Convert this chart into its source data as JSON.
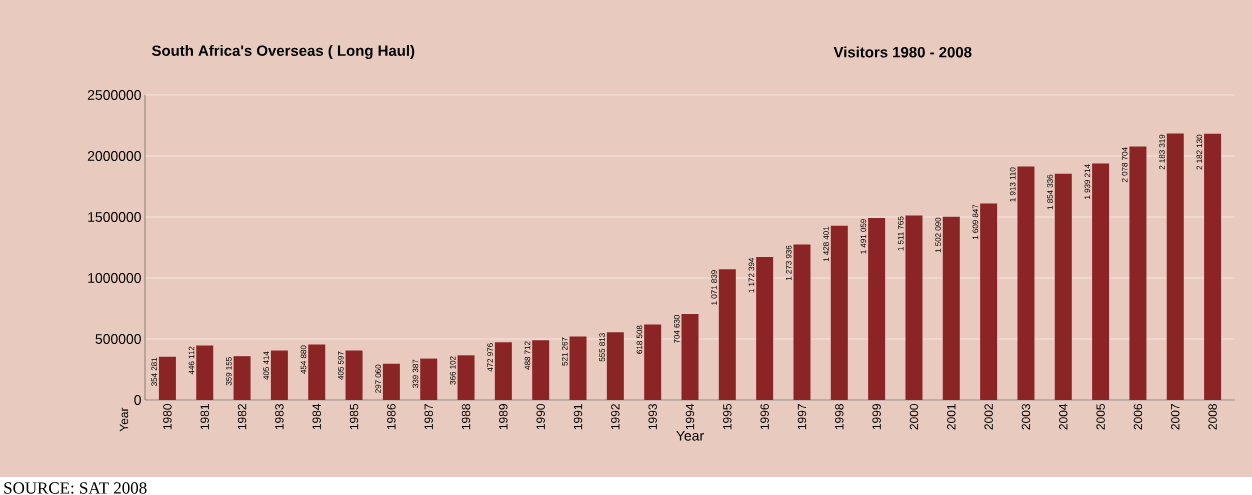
{
  "chart_data": {
    "type": "bar",
    "title": "South Africa's Overseas ( Long Haul)",
    "subtitle": "Visitors 1980 - 2008",
    "xlabel": "Year",
    "ylabel": "Year",
    "annotations": [
      "SOURCE: SAT 2008"
    ],
    "categories": [
      "1980",
      "1981",
      "1982",
      "1983",
      "1984",
      "1985",
      "1986",
      "1987",
      "1988",
      "1989",
      "1990",
      "1991",
      "1992",
      "1993",
      "1994",
      "1995",
      "1996",
      "1997",
      "1998",
      "1999",
      "2000",
      "2001",
      "2002",
      "2003",
      "2004",
      "2005",
      "2006",
      "2007",
      "2008"
    ],
    "values": [
      354281,
      446112,
      359155,
      405414,
      454880,
      405597,
      297060,
      339387,
      366102,
      472976,
      488712,
      521267,
      555813,
      618508,
      704630,
      1071839,
      1172394,
      1273936,
      1428401,
      1491059,
      1511765,
      1502090,
      1609847,
      1913110,
      1854336,
      1939214,
      2078704,
      2183319,
      2182130
    ],
    "value_labels": [
      "354 281",
      "446 112",
      "359 155",
      "405 414",
      "454 880",
      "405 597",
      "297 060",
      "339 387",
      "366 102",
      "472 976",
      "488 712",
      "521 267",
      "555 813",
      "618 508",
      "704 630",
      "1 071 839",
      "1 172 394",
      "1 273 936",
      "1 428 401",
      "1 491 059",
      "1 511 765",
      "1 502 090",
      "1 609 847",
      "1 913 110",
      "1 854 336",
      "1 939 214",
      "2 078 704",
      "2 183 319",
      "2 182 130"
    ],
    "color": "#8b2525",
    "ylim": [
      0,
      2500000
    ],
    "yticks": [
      0,
      500000,
      1000000,
      1500000,
      2000000,
      2500000
    ],
    "grid": "y"
  }
}
